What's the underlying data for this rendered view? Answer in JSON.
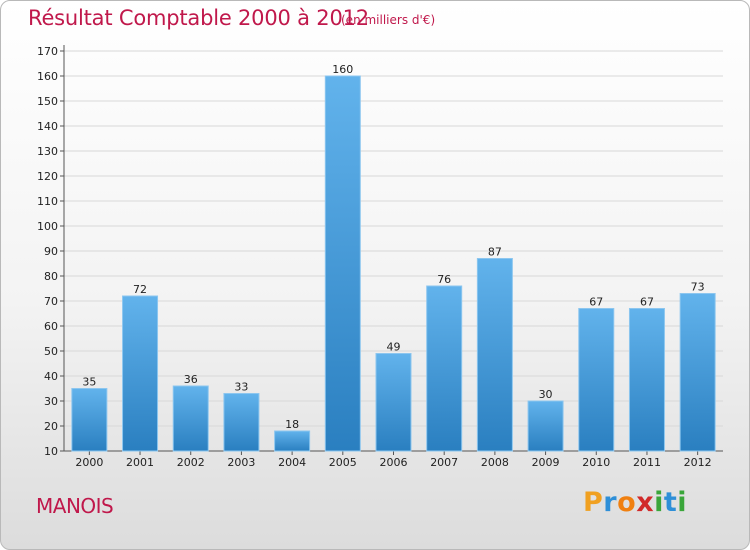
{
  "chart_data": {
    "type": "bar",
    "title": "Résultat Comptable 2000 à 2012",
    "subtitle": "(en milliers d'€)",
    "categories": [
      "2000",
      "2001",
      "2002",
      "2003",
      "2004",
      "2005",
      "2006",
      "2007",
      "2008",
      "2009",
      "2010",
      "2011",
      "2012"
    ],
    "values": [
      35,
      72,
      36,
      33,
      18,
      160,
      49,
      76,
      87,
      30,
      67,
      67,
      73
    ],
    "ylim": [
      10,
      170
    ],
    "yticks": [
      10,
      20,
      30,
      40,
      50,
      60,
      70,
      80,
      90,
      100,
      110,
      120,
      130,
      140,
      150,
      160,
      170
    ],
    "grid": true,
    "xlabel": "",
    "ylabel": ""
  },
  "commune": "MANOIS",
  "logo": {
    "letters": [
      "P",
      "r",
      "o",
      "x",
      "i",
      "t",
      "i"
    ],
    "colors": [
      "#f0a020",
      "#2e8fd8",
      "#f08010",
      "#d12a2a",
      "#3aa63a",
      "#2e8fd8",
      "#3aa63a"
    ]
  },
  "colors": {
    "title": "#c0184b",
    "bar_light": "#62b3ec",
    "bar_dark": "#2a7fc0"
  }
}
